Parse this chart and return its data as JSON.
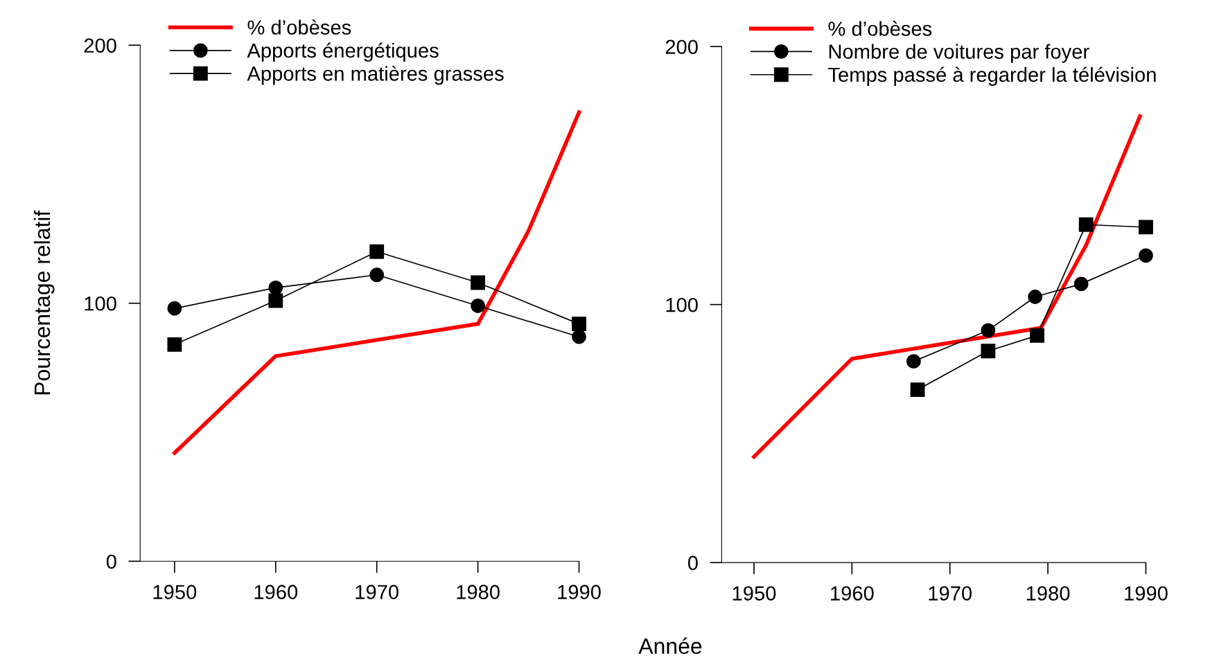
{
  "chart_data": [
    {
      "type": "line",
      "xlabel": "Année",
      "ylabel": "Pourcentage relatif",
      "xlim": [
        1946.6,
        1990
      ],
      "ylim": [
        0,
        200
      ],
      "xticks": [
        1950,
        1960,
        1970,
        1980,
        1990
      ],
      "yticks": [
        0,
        100,
        200
      ],
      "legend": "top left",
      "grid": false,
      "series": [
        {
          "name": "% d’obèses",
          "color": "#ff0000",
          "marker": "none",
          "x": [
            1950,
            1960,
            1980,
            1985,
            1990
          ],
          "values": [
            42,
            79.5,
            92,
            128,
            174
          ]
        },
        {
          "name": "Apports énergétiques",
          "color": "#000000",
          "marker": "circle",
          "x": [
            1950,
            1960,
            1970,
            1980,
            1990
          ],
          "values": [
            98,
            106,
            111,
            99,
            87
          ]
        },
        {
          "name": "Apports en matières grasses",
          "color": "#000000",
          "marker": "square",
          "x": [
            1950,
            1960,
            1970,
            1980,
            1990
          ],
          "values": [
            84,
            101,
            120,
            108,
            92
          ]
        }
      ]
    },
    {
      "type": "line",
      "xlim": [
        1946.7,
        1990
      ],
      "ylim": [
        0,
        200
      ],
      "xticks": [
        1950,
        1960,
        1970,
        1980,
        1990
      ],
      "yticks": [
        0,
        100,
        200
      ],
      "legend": "top left",
      "grid": false,
      "series": [
        {
          "name": "% d’obèses",
          "color": "#ff0000",
          "marker": "none",
          "x": [
            1950,
            1960,
            1979.3,
            1983.9,
            1989.4
          ],
          "values": [
            41,
            79,
            91,
            123,
            173
          ]
        },
        {
          "name": "Nombre de voitures par foyer",
          "color": "#000000",
          "marker": "circle",
          "x": [
            1966.3,
            1973.9,
            1978.7,
            1983.4,
            1990
          ],
          "values": [
            78,
            90,
            103,
            108,
            119
          ]
        },
        {
          "name": "Temps passé à regarder la télévision",
          "color": "#000000",
          "marker": "square",
          "x": [
            1966.7,
            1973.9,
            1978.9,
            1983.9,
            1990
          ],
          "values": [
            67,
            82,
            88,
            131,
            130
          ]
        }
      ]
    }
  ]
}
